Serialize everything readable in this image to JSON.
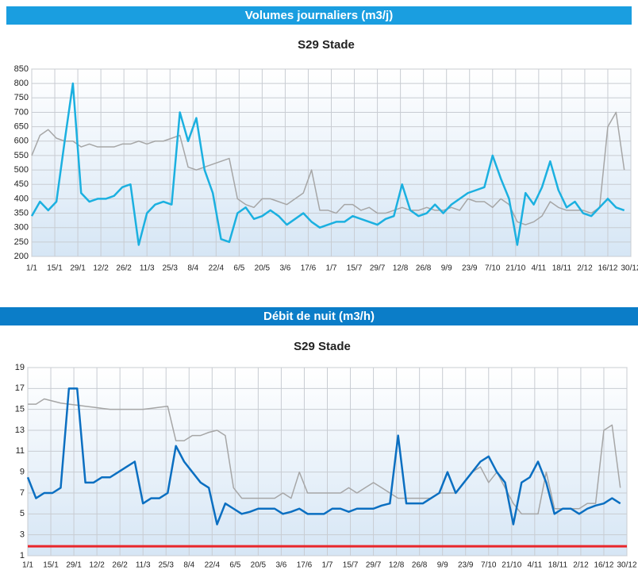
{
  "chart_data": [
    {
      "type": "line",
      "section_title": "Volumes journaliers (m3/j)",
      "title": "S29 Stade",
      "x": [
        1,
        6,
        11,
        16,
        21,
        26,
        31,
        36,
        41,
        46,
        51,
        56,
        61,
        66,
        71,
        76,
        81,
        86,
        91,
        96,
        101,
        106,
        111,
        116,
        121,
        126,
        131,
        136,
        141,
        146,
        151,
        156,
        161,
        166,
        171,
        176,
        181,
        186,
        191,
        196,
        201,
        206,
        211,
        216,
        221,
        226,
        231,
        236,
        241,
        246,
        251,
        256,
        261,
        266,
        271,
        276,
        281,
        286,
        291,
        296,
        301,
        306,
        311,
        316,
        321,
        326,
        331,
        336,
        341,
        346,
        351,
        356,
        361
      ],
      "xlim": [
        1,
        365
      ],
      "xticks": [
        {
          "value": 1,
          "label": "1/1"
        },
        {
          "value": 15,
          "label": "15/1"
        },
        {
          "value": 29,
          "label": "29/1"
        },
        {
          "value": 43,
          "label": "12/2"
        },
        {
          "value": 57,
          "label": "26/2"
        },
        {
          "value": 71,
          "label": "11/3"
        },
        {
          "value": 85,
          "label": "25/3"
        },
        {
          "value": 99,
          "label": "8/4"
        },
        {
          "value": 113,
          "label": "22/4"
        },
        {
          "value": 127,
          "label": "6/5"
        },
        {
          "value": 141,
          "label": "20/5"
        },
        {
          "value": 155,
          "label": "3/6"
        },
        {
          "value": 169,
          "label": "17/6"
        },
        {
          "value": 183,
          "label": "1/7"
        },
        {
          "value": 197,
          "label": "15/7"
        },
        {
          "value": 211,
          "label": "29/7"
        },
        {
          "value": 225,
          "label": "12/8"
        },
        {
          "value": 239,
          "label": "26/8"
        },
        {
          "value": 253,
          "label": "9/9"
        },
        {
          "value": 267,
          "label": "23/9"
        },
        {
          "value": 281,
          "label": "7/10"
        },
        {
          "value": 295,
          "label": "21/10"
        },
        {
          "value": 309,
          "label": "4/11"
        },
        {
          "value": 323,
          "label": "18/11"
        },
        {
          "value": 337,
          "label": "2/12"
        },
        {
          "value": 351,
          "label": "16/12"
        },
        {
          "value": 365,
          "label": "30/12"
        }
      ],
      "ylim": [
        200,
        850
      ],
      "yticks": [
        200,
        250,
        300,
        350,
        400,
        450,
        500,
        550,
        600,
        650,
        700,
        750,
        800,
        850
      ],
      "grid": true,
      "series": [
        {
          "color": "#a6a6a6",
          "values": [
            550,
            620,
            640,
            610,
            600,
            600,
            580,
            590,
            580,
            580,
            580,
            590,
            590,
            600,
            590,
            600,
            600,
            610,
            620,
            510,
            500,
            510,
            520,
            530,
            540,
            400,
            380,
            370,
            400,
            400,
            390,
            380,
            400,
            420,
            500,
            360,
            360,
            350,
            380,
            380,
            360,
            370,
            350,
            350,
            360,
            370,
            360,
            360,
            370,
            360,
            360,
            370,
            360,
            400,
            390,
            390,
            370,
            400,
            380,
            320,
            310,
            320,
            340,
            390,
            370,
            360,
            360,
            360,
            350,
            370,
            650,
            700,
            500
          ]
        },
        {
          "color": "#1bb0e0",
          "values": [
            340,
            390,
            360,
            390,
            600,
            800,
            420,
            390,
            400,
            400,
            410,
            440,
            450,
            240,
            350,
            380,
            390,
            380,
            700,
            600,
            680,
            500,
            420,
            260,
            250,
            350,
            370,
            330,
            340,
            360,
            340,
            310,
            330,
            350,
            320,
            300,
            310,
            320,
            320,
            340,
            330,
            320,
            310,
            330,
            340,
            450,
            360,
            340,
            350,
            380,
            350,
            380,
            400,
            420,
            430,
            440,
            550,
            470,
            400,
            240,
            420,
            380,
            440,
            530,
            430,
            370,
            390,
            350,
            340,
            370,
            400,
            370,
            360
          ]
        }
      ]
    },
    {
      "type": "line",
      "section_title": "Débit de nuit (m3/h)",
      "title": "S29 Stade",
      "x": [
        1,
        6,
        11,
        16,
        21,
        26,
        31,
        36,
        41,
        46,
        51,
        56,
        61,
        66,
        71,
        76,
        81,
        86,
        91,
        96,
        101,
        106,
        111,
        116,
        121,
        126,
        131,
        136,
        141,
        146,
        151,
        156,
        161,
        166,
        171,
        176,
        181,
        186,
        191,
        196,
        201,
        206,
        211,
        216,
        221,
        226,
        231,
        236,
        241,
        246,
        251,
        256,
        261,
        266,
        271,
        276,
        281,
        286,
        291,
        296,
        301,
        306,
        311,
        316,
        321,
        326,
        331,
        336,
        341,
        346,
        351,
        356,
        361
      ],
      "xlim": [
        1,
        365
      ],
      "xticks": [
        {
          "value": 1,
          "label": "1/1"
        },
        {
          "value": 15,
          "label": "15/1"
        },
        {
          "value": 29,
          "label": "29/1"
        },
        {
          "value": 43,
          "label": "12/2"
        },
        {
          "value": 57,
          "label": "26/2"
        },
        {
          "value": 71,
          "label": "11/3"
        },
        {
          "value": 85,
          "label": "25/3"
        },
        {
          "value": 99,
          "label": "8/4"
        },
        {
          "value": 113,
          "label": "22/4"
        },
        {
          "value": 127,
          "label": "6/5"
        },
        {
          "value": 141,
          "label": "20/5"
        },
        {
          "value": 155,
          "label": "3/6"
        },
        {
          "value": 169,
          "label": "17/6"
        },
        {
          "value": 183,
          "label": "1/7"
        },
        {
          "value": 197,
          "label": "15/7"
        },
        {
          "value": 211,
          "label": "29/7"
        },
        {
          "value": 225,
          "label": "12/8"
        },
        {
          "value": 239,
          "label": "26/8"
        },
        {
          "value": 253,
          "label": "9/9"
        },
        {
          "value": 267,
          "label": "23/9"
        },
        {
          "value": 281,
          "label": "7/10"
        },
        {
          "value": 295,
          "label": "21/10"
        },
        {
          "value": 309,
          "label": "4/11"
        },
        {
          "value": 323,
          "label": "18/11"
        },
        {
          "value": 337,
          "label": "2/12"
        },
        {
          "value": 351,
          "label": "16/12"
        },
        {
          "value": 365,
          "label": "30/12"
        }
      ],
      "ylim": [
        1,
        19
      ],
      "yticks": [
        1,
        3,
        5,
        7,
        9,
        11,
        13,
        15,
        17,
        19
      ],
      "grid": true,
      "reference_line": {
        "value": 1.9,
        "color": "#e8262b"
      },
      "series": [
        {
          "color": "#a6a6a6",
          "values": [
            15.5,
            15.5,
            16,
            15.8,
            15.6,
            15.5,
            15.4,
            15.3,
            15.2,
            15.1,
            15,
            15,
            15,
            15,
            15,
            15.1,
            15.2,
            15.3,
            12,
            12,
            12.5,
            12.5,
            12.8,
            13,
            12.5,
            7.5,
            6.5,
            6.5,
            6.5,
            6.5,
            6.5,
            7,
            6.5,
            9,
            7,
            7,
            7,
            7,
            7,
            7.5,
            7,
            7.5,
            8,
            7.5,
            7,
            6.5,
            6.5,
            6.5,
            6.5,
            6.5,
            7,
            7,
            7,
            8,
            9,
            9.5,
            8,
            9,
            7.5,
            6,
            5,
            5,
            5,
            9,
            5.5,
            5.5,
            5.5,
            5.5,
            6,
            6,
            13,
            13.5,
            7.5
          ]
        },
        {
          "color": "#0b6fc1",
          "values": [
            8.5,
            6.5,
            7,
            7,
            7.5,
            17,
            17,
            8,
            8,
            8.5,
            8.5,
            9,
            9.5,
            10,
            6,
            6.5,
            6.5,
            7,
            11.5,
            10,
            9,
            8,
            7.5,
            4,
            6,
            5.5,
            5,
            5.2,
            5.5,
            5.5,
            5.5,
            5,
            5.2,
            5.5,
            5,
            5,
            5,
            5.5,
            5.5,
            5.2,
            5.5,
            5.5,
            5.5,
            5.8,
            6,
            12.5,
            6,
            6,
            6,
            6.5,
            7,
            9,
            7,
            8,
            9,
            10,
            10.5,
            9,
            8,
            4,
            8,
            8.5,
            10,
            8,
            5,
            5.5,
            5.5,
            5,
            5.5,
            5.8,
            6,
            6.5,
            6
          ]
        }
      ]
    }
  ]
}
